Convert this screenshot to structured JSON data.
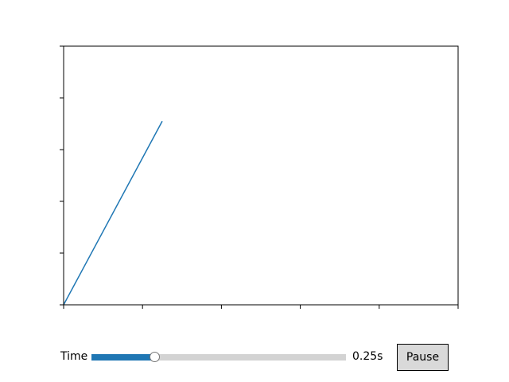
{
  "chart_data": {
    "type": "line",
    "title": "",
    "xlabel": "",
    "ylabel": "",
    "xlim": [
      0,
      1
    ],
    "ylim": [
      0,
      1
    ],
    "xticks": [
      0,
      0.2,
      0.4,
      0.6,
      0.8,
      1.0
    ],
    "yticks": [
      0,
      0.2,
      0.4,
      0.6,
      0.8,
      1.0
    ],
    "tick_labels_visible": false,
    "grid": false,
    "series": [
      {
        "color": "#1f77b4",
        "x": [
          0,
          0.25
        ],
        "y": [
          0,
          0.71
        ]
      }
    ]
  },
  "controls": {
    "slider": {
      "label": "Time",
      "value_text": "0.25s",
      "fraction": 0.25,
      "fill_color": "#1f77b4",
      "track_color": "#d3d3d3"
    },
    "pause_label": "Pause"
  }
}
